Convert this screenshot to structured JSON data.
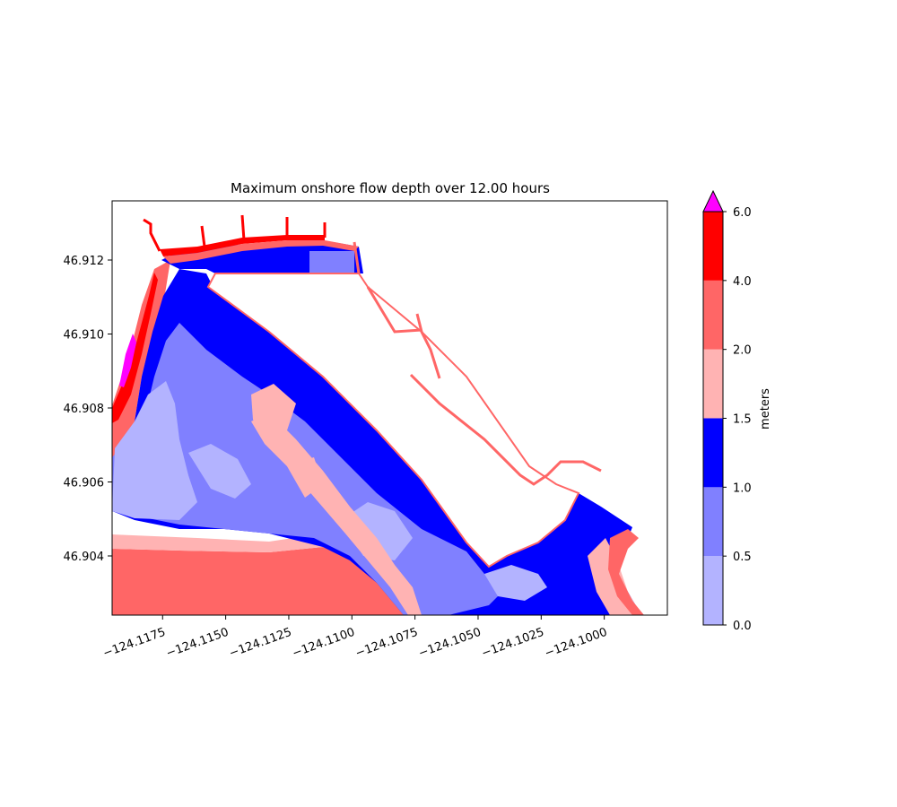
{
  "chart_data": {
    "type": "heatmap",
    "title": "Maximum onshore flow depth over 12.00 hours",
    "xlabel": "",
    "ylabel": "",
    "xlim": [
      -124.1195,
      -124.0975
    ],
    "ylim": [
      46.9024,
      46.9136
    ],
    "x_ticks": [
      {
        "value": -124.1175,
        "label": "−124.1175"
      },
      {
        "value": -124.115,
        "label": "−124.1150"
      },
      {
        "value": -124.1125,
        "label": "−124.1125"
      },
      {
        "value": -124.11,
        "label": "−124.1100"
      },
      {
        "value": -124.1075,
        "label": "−124.1075"
      },
      {
        "value": -124.105,
        "label": "−124.1050"
      },
      {
        "value": -124.1025,
        "label": "−124.1025"
      },
      {
        "value": -124.1,
        "label": "−124.1000"
      }
    ],
    "y_ticks": [
      {
        "value": 46.904,
        "label": "46.904"
      },
      {
        "value": 46.906,
        "label": "46.906"
      },
      {
        "value": 46.908,
        "label": "46.908"
      },
      {
        "value": 46.91,
        "label": "46.910"
      },
      {
        "value": 46.912,
        "label": "46.912"
      }
    ],
    "colorbar": {
      "label": "meters",
      "extend": "max",
      "over_color": "#ff00ff",
      "levels": [
        {
          "label": "0.0",
          "value": 0.0
        },
        {
          "label": "0.5",
          "value": 0.5
        },
        {
          "label": "1.0",
          "value": 1.0
        },
        {
          "label": "1.5",
          "value": 1.5
        },
        {
          "label": "2.0",
          "value": 2.0
        },
        {
          "label": "4.0",
          "value": 4.0
        },
        {
          "label": "6.0",
          "value": 6.0
        }
      ],
      "bins": [
        {
          "range": [
            0.0,
            0.5
          ],
          "color": "#b3b3ff"
        },
        {
          "range": [
            0.5,
            1.0
          ],
          "color": "#8080ff"
        },
        {
          "range": [
            1.0,
            1.5
          ],
          "color": "#0000ff"
        },
        {
          "range": [
            1.5,
            2.0
          ],
          "color": "#ffb3b3"
        },
        {
          "range": [
            2.0,
            4.0
          ],
          "color": "#ff6666"
        },
        {
          "range": [
            4.0,
            6.0
          ],
          "color": "#ff0000"
        }
      ]
    }
  }
}
